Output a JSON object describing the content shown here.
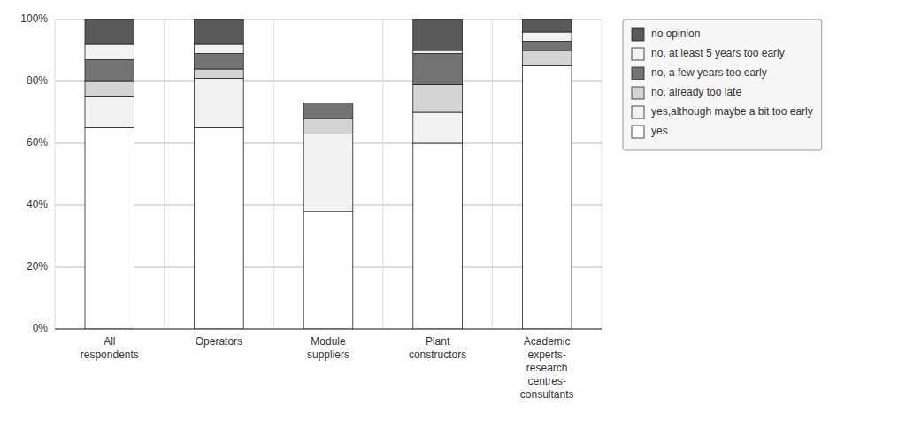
{
  "chart_data": {
    "type": "bar",
    "stacked": true,
    "grid": true,
    "legend": "right",
    "categories": [
      "All\nrespondents",
      "Operators",
      "Module\nsuppliers",
      "Plant\nconstructors",
      "Academic\nexperts-\nresearch\ncentres-\nconsultants"
    ],
    "series": [
      {
        "name": "yes",
        "color": "#ffffff",
        "values": [
          65,
          65,
          38,
          60,
          85
        ]
      },
      {
        "name": "yes,although maybe a bit too early",
        "color": "#f2f2f2",
        "values": [
          10,
          16,
          25,
          10,
          0
        ]
      },
      {
        "name": "no, already too late",
        "color": "#d4d4d4",
        "values": [
          5,
          3,
          5,
          9,
          5
        ]
      },
      {
        "name": "no, a few years too early",
        "color": "#737373",
        "values": [
          7,
          5,
          5,
          10,
          3
        ]
      },
      {
        "name": "no, at least 5 years too early",
        "color": "#f2f2f2",
        "values": [
          5,
          3,
          0,
          1,
          3
        ]
      },
      {
        "name": "no opinion",
        "color": "#595959",
        "values": [
          8,
          8,
          0,
          10,
          4
        ]
      }
    ],
    "ylim": [
      0,
      100
    ],
    "yticks": [
      {
        "value": 0,
        "label": "0%"
      },
      {
        "value": 20,
        "label": "20%"
      },
      {
        "value": 40,
        "label": "40%"
      },
      {
        "value": 60,
        "label": "60%"
      },
      {
        "value": 80,
        "label": "80%"
      },
      {
        "value": 100,
        "label": "100%"
      }
    ]
  }
}
